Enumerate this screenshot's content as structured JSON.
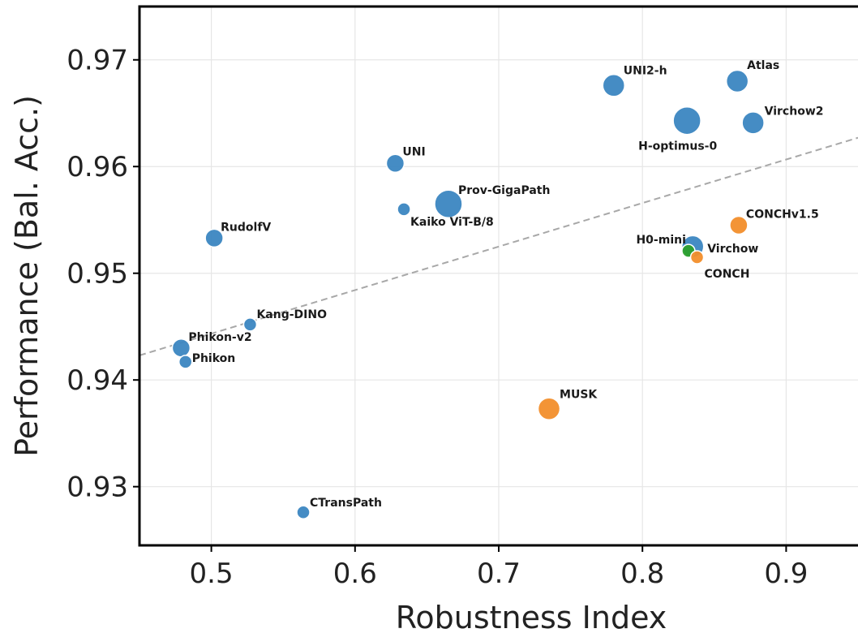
{
  "colors": {
    "pathology_only": "#3b86c1",
    "vision_language": "#f28e2b",
    "distilled": "#2ca02c",
    "trend": "#a8a8a8"
  },
  "chart_data": {
    "type": "scatter",
    "title": "",
    "xlabel": "Robustness Index",
    "ylabel": "Performance (Bal. Acc.)",
    "xlim": [
      0.45,
      0.95
    ],
    "ylim": [
      0.9245,
      0.975
    ],
    "xticks": [
      0.5,
      0.6,
      0.7,
      0.8,
      0.9
    ],
    "xtick_labels": [
      "0.5",
      "0.6",
      "0.7",
      "0.8",
      "0.9"
    ],
    "yticks": [
      0.93,
      0.94,
      0.95,
      0.96,
      0.97
    ],
    "ytick_labels": [
      "0.93",
      "0.94",
      "0.95",
      "0.96",
      "0.97"
    ],
    "grid": true,
    "legend": "none",
    "trend_line": {
      "x": [
        0.45,
        0.95
      ],
      "y": [
        0.9423,
        0.9627
      ]
    },
    "points": [
      {
        "label": "UNI2-h",
        "x": 0.78,
        "y": 0.9676,
        "size": "large",
        "group": "pathology_only"
      },
      {
        "label": "Atlas",
        "x": 0.866,
        "y": 0.968,
        "size": "large",
        "group": "pathology_only"
      },
      {
        "label": "H-optimus-0",
        "x": 0.831,
        "y": 0.9643,
        "size": "xlarge",
        "group": "pathology_only"
      },
      {
        "label": "Virchow2",
        "x": 0.877,
        "y": 0.9641,
        "size": "large",
        "group": "pathology_only"
      },
      {
        "label": "UNI",
        "x": 0.628,
        "y": 0.9603,
        "size": "medium",
        "group": "pathology_only"
      },
      {
        "label": "Prov-GigaPath",
        "x": 0.665,
        "y": 0.9565,
        "size": "xlarge",
        "group": "pathology_only"
      },
      {
        "label": "Kaiko ViT-B/8",
        "x": 0.634,
        "y": 0.956,
        "size": "small",
        "group": "pathology_only"
      },
      {
        "label": "RudolfV",
        "x": 0.502,
        "y": 0.9533,
        "size": "medium",
        "group": "pathology_only"
      },
      {
        "label": "CONCHv1.5",
        "x": 0.867,
        "y": 0.9545,
        "size": "medium",
        "group": "vision_language"
      },
      {
        "label": "Virchow",
        "x": 0.835,
        "y": 0.9525,
        "size": "large",
        "group": "pathology_only"
      },
      {
        "label": "H0-mini",
        "x": 0.832,
        "y": 0.9521,
        "size": "small",
        "group": "distilled"
      },
      {
        "label": "CONCH",
        "x": 0.838,
        "y": 0.9515,
        "size": "small",
        "group": "vision_language"
      },
      {
        "label": "Kang-DINO",
        "x": 0.527,
        "y": 0.9452,
        "size": "small",
        "group": "pathology_only"
      },
      {
        "label": "Phikon-v2",
        "x": 0.479,
        "y": 0.943,
        "size": "medium",
        "group": "pathology_only"
      },
      {
        "label": "Phikon",
        "x": 0.482,
        "y": 0.9417,
        "size": "small",
        "group": "pathology_only"
      },
      {
        "label": "MUSK",
        "x": 0.735,
        "y": 0.9373,
        "size": "large",
        "group": "vision_language"
      },
      {
        "label": "CTransPath",
        "x": 0.564,
        "y": 0.9276,
        "size": "small",
        "group": "pathology_only"
      }
    ]
  }
}
